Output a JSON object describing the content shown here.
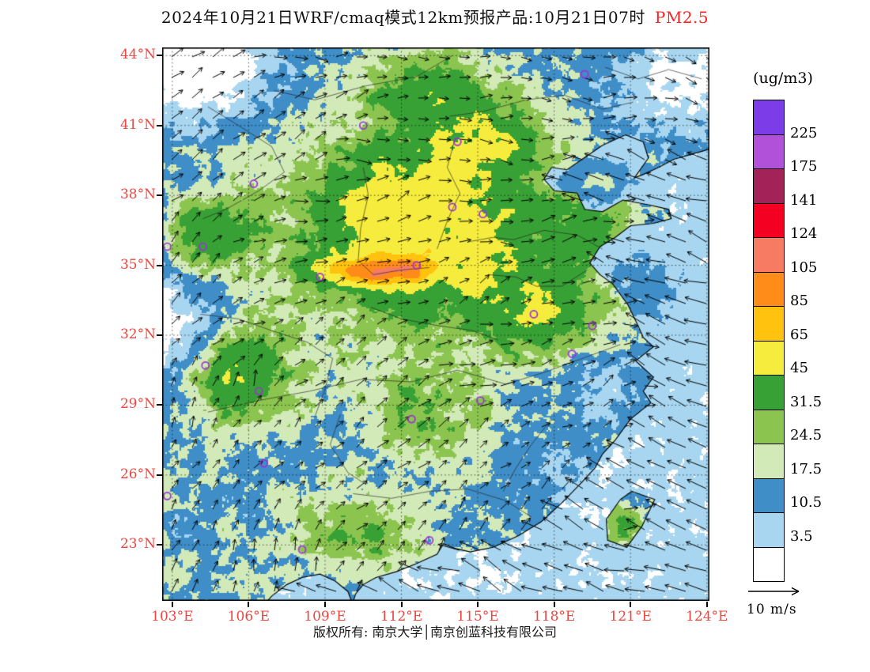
{
  "title": {
    "main": "2024年10月21日WRF/cmaq模式12km预报产品:10月21日07时",
    "highlight": "PM2.5",
    "highlight_color": "#fb2121"
  },
  "footer": {
    "text": "版权所有: 南京大学│南京创蓝科技有限公司"
  },
  "colorbar": {
    "unit_label": "(ug/m3)",
    "tick_labels_top_to_bottom": [
      "225",
      "175",
      "141",
      "124",
      "105",
      "85",
      "65",
      "45",
      "31.5",
      "24.5",
      "17.5",
      "10.5",
      "3.5"
    ]
  },
  "wind_legend": {
    "label": "10 m/s"
  },
  "axes": {
    "tick_color": "#ee453f",
    "lat_tick_labels": [
      "44°N",
      "41°N",
      "38°N",
      "35°N",
      "32°N",
      "29°N",
      "26°N",
      "23°N"
    ],
    "lat_tick_values": [
      44,
      41,
      38,
      35,
      32,
      29,
      26,
      23
    ],
    "lon_tick_labels": [
      "103°E",
      "106°E",
      "109°E",
      "112°E",
      "115°E",
      "118°E",
      "121°E",
      "124°E"
    ],
    "lon_tick_values": [
      103,
      106,
      109,
      112,
      115,
      118,
      121,
      124
    ]
  },
  "chart_data": {
    "type": "heatmap",
    "title": "2024年10月21日WRF/cmaq模式12km预报产品:10月21日07时 PM2.5",
    "variable": "PM2.5 surface concentration with 10m wind vectors",
    "unit": "ug/m3",
    "lon_range": [
      102.6,
      124.1
    ],
    "lat_range": [
      20.6,
      44.35
    ],
    "graticule_deg": 3,
    "levels": [
      3.5,
      10.5,
      17.5,
      24.5,
      31.5,
      45,
      65,
      85,
      105,
      124,
      141,
      175,
      225
    ],
    "colors_low_to_high": [
      "#ffffff",
      "#a8d6f0",
      "#3f8ec8",
      "#d2e9b8",
      "#8cc450",
      "#38a135",
      "#f5ec3e",
      "#ffc20e",
      "#ff8c19",
      "#f77b62",
      "#f30022",
      "#a32257",
      "#b150d8",
      "#7c3ce8"
    ],
    "wind": {
      "reference_speed_mps": 10,
      "style": "arrows"
    },
    "land_base": 16,
    "sea_base": 4.5,
    "hotspots": [
      [
        112.5,
        36.5,
        4.8,
        3.6,
        40
      ],
      [
        114.8,
        40.2,
        2.4,
        1.8,
        24
      ],
      [
        110.9,
        34.8,
        1.9,
        0.55,
        80
      ],
      [
        106.0,
        30.2,
        2.2,
        1.8,
        26
      ],
      [
        104.3,
        36.2,
        1.5,
        1.5,
        22
      ],
      [
        117.3,
        33.2,
        2.6,
        2.2,
        20
      ],
      [
        119.3,
        36.6,
        1.6,
        1.3,
        15
      ],
      [
        113.2,
        28.6,
        2.3,
        2.3,
        13
      ],
      [
        109.8,
        23.4,
        2.6,
        1.6,
        13
      ],
      [
        120.7,
        24.0,
        0.7,
        1.0,
        14
      ],
      [
        113.5,
        42.5,
        3.0,
        1.5,
        16
      ],
      [
        103.8,
        43.2,
        3.0,
        2.2,
        -20
      ],
      [
        103.5,
        44.3,
        2.2,
        1.0,
        -14
      ],
      [
        123.0,
        42.8,
        2.8,
        2.6,
        -15
      ],
      [
        102.8,
        32.5,
        1.8,
        2.6,
        -16
      ],
      [
        120.0,
        29.8,
        1.6,
        1.3,
        -10
      ],
      [
        118.9,
        25.6,
        1.6,
        1.4,
        -8
      ]
    ],
    "sea_hotspots": [
      [
        119.8,
        38.6,
        1.5,
        1.0,
        12
      ],
      [
        121.5,
        33.5,
        1.8,
        2.2,
        8
      ]
    ],
    "stations_lonlat": [
      [
        119.2,
        43.2
      ],
      [
        110.5,
        41.0
      ],
      [
        114.2,
        40.3
      ],
      [
        106.2,
        38.5
      ],
      [
        102.8,
        35.8
      ],
      [
        104.2,
        35.8
      ],
      [
        108.8,
        34.5
      ],
      [
        112.6,
        35.0
      ],
      [
        115.2,
        37.2
      ],
      [
        114.0,
        37.5
      ],
      [
        117.2,
        32.9
      ],
      [
        119.5,
        32.4
      ],
      [
        118.7,
        31.2
      ],
      [
        104.3,
        30.7
      ],
      [
        106.4,
        29.6
      ],
      [
        115.1,
        29.2
      ],
      [
        112.4,
        28.4
      ],
      [
        106.6,
        26.5
      ],
      [
        102.8,
        25.1
      ],
      [
        108.1,
        22.8
      ],
      [
        113.1,
        23.2
      ]
    ],
    "coastline": [
      [
        124.3,
        40.05
      ],
      [
        123.5,
        39.8
      ],
      [
        122.7,
        39.55
      ],
      [
        122.1,
        39.2
      ],
      [
        121.5,
        38.9
      ],
      [
        121.15,
        38.75
      ],
      [
        121.7,
        39.6
      ],
      [
        121.5,
        40.3
      ],
      [
        120.8,
        40.6
      ],
      [
        119.9,
        40.15
      ],
      [
        119.3,
        39.7
      ],
      [
        118.5,
        39.1
      ],
      [
        117.9,
        39.2
      ],
      [
        117.6,
        38.7
      ],
      [
        118.0,
        38.2
      ],
      [
        118.9,
        38.1
      ],
      [
        119.2,
        37.4
      ],
      [
        119.9,
        37.3
      ],
      [
        120.7,
        37.8
      ],
      [
        121.7,
        37.6
      ],
      [
        122.5,
        37.4
      ],
      [
        122.6,
        37.0
      ],
      [
        121.9,
        36.8
      ],
      [
        121.0,
        36.7
      ],
      [
        120.4,
        36.2
      ],
      [
        119.8,
        35.8
      ],
      [
        119.4,
        35.1
      ],
      [
        119.8,
        34.6
      ],
      [
        120.3,
        34.2
      ],
      [
        120.9,
        33.3
      ],
      [
        121.3,
        32.4
      ],
      [
        121.5,
        31.9
      ],
      [
        121.9,
        31.5
      ],
      [
        121.2,
        30.9
      ],
      [
        121.9,
        30.2
      ],
      [
        121.5,
        29.6
      ],
      [
        121.8,
        29.1
      ],
      [
        121.0,
        28.4
      ],
      [
        120.4,
        27.5
      ],
      [
        119.9,
        26.9
      ],
      [
        119.6,
        26.3
      ],
      [
        119.1,
        25.7
      ],
      [
        118.3,
        24.8
      ],
      [
        117.5,
        24.0
      ],
      [
        116.6,
        23.4
      ],
      [
        115.6,
        22.9
      ],
      [
        114.7,
        22.7
      ],
      [
        114.1,
        22.85
      ],
      [
        113.65,
        23.05
      ],
      [
        113.4,
        22.6
      ],
      [
        112.6,
        22.2
      ],
      [
        111.8,
        21.85
      ],
      [
        111.0,
        21.6
      ],
      [
        110.5,
        21.3
      ],
      [
        110.2,
        20.9
      ],
      [
        110.1,
        20.55
      ]
    ],
    "gulf_of_tonkin": [
      [
        110.05,
        20.55
      ],
      [
        109.9,
        21.0
      ],
      [
        109.4,
        21.45
      ],
      [
        108.8,
        21.75
      ],
      [
        108.1,
        21.6
      ],
      [
        107.5,
        21.3
      ],
      [
        106.9,
        20.8
      ],
      [
        106.7,
        20.55
      ]
    ],
    "taiwan": [
      [
        121.05,
        25.3
      ],
      [
        121.95,
        24.95
      ],
      [
        121.45,
        23.8
      ],
      [
        120.85,
        22.9
      ],
      [
        120.1,
        23.2
      ],
      [
        120.05,
        24.1
      ],
      [
        120.6,
        24.95
      ]
    ],
    "province_borders": [
      [
        [
          110.5,
          39.2
        ],
        [
          110.7,
          38.0
        ],
        [
          110.4,
          36.6
        ],
        [
          110.3,
          35.2
        ],
        [
          110.9,
          34.6
        ],
        [
          112.0,
          34.8
        ],
        [
          113.1,
          34.9
        ]
      ],
      [
        [
          113.9,
          41.4
        ],
        [
          115.2,
          41.6
        ],
        [
          116.9,
          42.1
        ],
        [
          118.4,
          42.3
        ],
        [
          119.9,
          41.7
        ],
        [
          121.1,
          42.0
        ]
      ],
      [
        [
          114.6,
          36.0
        ],
        [
          115.6,
          36.2
        ],
        [
          116.4,
          36.1
        ],
        [
          117.6,
          36.5
        ],
        [
          118.9,
          36.3
        ],
        [
          119.9,
          35.7
        ]
      ],
      [
        [
          104.4,
          28.7
        ],
        [
          106.4,
          29.2
        ],
        [
          108.4,
          29.6
        ],
        [
          110.4,
          30.1
        ],
        [
          112.4,
          30.0
        ],
        [
          114.2,
          30.5
        ],
        [
          116.1,
          29.9
        ],
        [
          117.6,
          30.4
        ],
        [
          119.1,
          31.0
        ],
        [
          120.6,
          31.6
        ]
      ],
      [
        [
          110.1,
          25.2
        ],
        [
          111.6,
          25.0
        ],
        [
          113.1,
          25.3
        ],
        [
          114.6,
          25.4
        ],
        [
          116.1,
          24.9
        ],
        [
          117.1,
          24.2
        ]
      ],
      [
        [
          104.1,
          32.9
        ],
        [
          105.6,
          32.7
        ],
        [
          106.9,
          32.2
        ],
        [
          108.3,
          31.7
        ],
        [
          109.3,
          31.0
        ],
        [
          109.0,
          29.7
        ],
        [
          108.6,
          28.5
        ]
      ],
      [
        [
          114.1,
          40.4
        ],
        [
          113.8,
          39.2
        ],
        [
          114.3,
          38.1
        ],
        [
          113.8,
          36.9
        ],
        [
          113.4,
          35.7
        ]
      ],
      [
        [
          115.4,
          34.6
        ],
        [
          116.5,
          34.5
        ],
        [
          117.3,
          34.1
        ],
        [
          118.3,
          34.1
        ],
        [
          119.3,
          34.8
        ]
      ],
      [
        [
          104.4,
          41.8
        ],
        [
          105.6,
          41.0
        ],
        [
          106.9,
          40.1
        ],
        [
          107.4,
          39.0
        ],
        [
          106.4,
          38.2
        ],
        [
          105.1,
          37.4
        ],
        [
          104.2,
          37.0
        ]
      ],
      [
        [
          117.9,
          28.4
        ],
        [
          117.1,
          27.3
        ],
        [
          116.5,
          26.3
        ],
        [
          116.0,
          25.3
        ]
      ],
      [
        [
          109.6,
          28.6
        ],
        [
          109.2,
          27.3
        ],
        [
          109.9,
          26.1
        ],
        [
          110.6,
          25.6
        ]
      ],
      [
        [
          107.0,
          42.5
        ],
        [
          108.6,
          42.1
        ],
        [
          110.6,
          42.7
        ],
        [
          112.6,
          43.1
        ],
        [
          114.0,
          44.0
        ]
      ],
      [
        [
          110.8,
          33.2
        ],
        [
          112.0,
          32.7
        ],
        [
          113.5,
          32.4
        ],
        [
          114.8,
          32.2
        ],
        [
          115.8,
          31.8
        ]
      ],
      [
        [
          120.0,
          43.5
        ],
        [
          121.3,
          43.0
        ],
        [
          122.5,
          43.4
        ],
        [
          123.8,
          43.0
        ]
      ]
    ]
  }
}
